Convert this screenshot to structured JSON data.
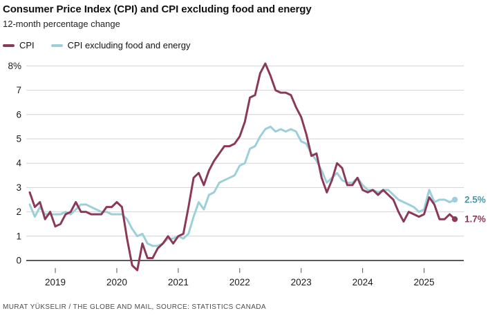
{
  "page": {
    "title": "Consumer Price Index (CPI) and CPI excluding food and energy",
    "subtitle": "12-month percentage change",
    "source": "MURAT YÜKSELIR / THE GLOBE AND MAIL, SOURCE: STATISTICS CANADA"
  },
  "legend": {
    "items": [
      {
        "label": "CPI",
        "color": "#8c3858"
      },
      {
        "label": "CPI excluding food and energy",
        "color": "#9bd0d9"
      }
    ]
  },
  "colors": {
    "grid": "#d2d2d2",
    "zero_axis": "#222222",
    "tick": "#555555",
    "axis_text": "#1a1a1a"
  },
  "chart_data": {
    "type": "line",
    "title": "Consumer Price Index (CPI) and CPI excluding food and energy",
    "subtitle": "12-month percentage change",
    "xlabel": "",
    "ylabel": "12-month percentage change",
    "x_frequency": "monthly",
    "x": [
      "2018-08",
      "2018-09",
      "2018-10",
      "2018-11",
      "2018-12",
      "2019-01",
      "2019-02",
      "2019-03",
      "2019-04",
      "2019-05",
      "2019-06",
      "2019-07",
      "2019-08",
      "2019-09",
      "2019-10",
      "2019-11",
      "2019-12",
      "2020-01",
      "2020-02",
      "2020-03",
      "2020-04",
      "2020-05",
      "2020-06",
      "2020-07",
      "2020-08",
      "2020-09",
      "2020-10",
      "2020-11",
      "2020-12",
      "2021-01",
      "2021-02",
      "2021-03",
      "2021-04",
      "2021-05",
      "2021-06",
      "2021-07",
      "2021-08",
      "2021-09",
      "2021-10",
      "2021-11",
      "2021-12",
      "2022-01",
      "2022-02",
      "2022-03",
      "2022-04",
      "2022-05",
      "2022-06",
      "2022-07",
      "2022-08",
      "2022-09",
      "2022-10",
      "2022-11",
      "2022-12",
      "2023-01",
      "2023-02",
      "2023-03",
      "2023-04",
      "2023-05",
      "2023-06",
      "2023-07",
      "2023-08",
      "2023-09",
      "2023-10",
      "2023-11",
      "2023-12",
      "2024-01",
      "2024-02",
      "2024-03",
      "2024-04",
      "2024-05",
      "2024-06",
      "2024-07",
      "2024-08",
      "2024-09",
      "2024-10",
      "2024-11",
      "2024-12",
      "2025-01",
      "2025-02",
      "2025-03",
      "2025-04",
      "2025-05",
      "2025-06",
      "2025-07"
    ],
    "x_tick_labels": [
      "2019",
      "2020",
      "2021",
      "2022",
      "2023",
      "2024",
      "2025"
    ],
    "y_tick_labels": [
      "8%",
      "7",
      "6",
      "5",
      "4",
      "3",
      "2",
      "1",
      "0"
    ],
    "ylim": [
      -0.5,
      8.3
    ],
    "grid": true,
    "legend_position": "top-left",
    "series": [
      {
        "name": "CPI",
        "color": "#8c3858",
        "end_label": "1.7%",
        "end_label_color": "#8c3858",
        "end_value": 1.7,
        "values": [
          2.8,
          2.2,
          2.4,
          1.7,
          2.0,
          1.4,
          1.5,
          1.9,
          2.0,
          2.4,
          2.0,
          2.0,
          1.9,
          1.9,
          1.9,
          2.2,
          2.2,
          2.4,
          2.2,
          0.9,
          -0.2,
          -0.4,
          0.7,
          0.1,
          0.1,
          0.5,
          0.7,
          1.0,
          0.7,
          1.0,
          1.1,
          2.2,
          3.4,
          3.6,
          3.1,
          3.7,
          4.1,
          4.4,
          4.7,
          4.7,
          4.8,
          5.1,
          5.7,
          6.7,
          6.8,
          7.7,
          8.1,
          7.6,
          7.0,
          6.9,
          6.9,
          6.8,
          6.3,
          5.9,
          5.2,
          4.3,
          4.4,
          3.4,
          2.8,
          3.3,
          4.0,
          3.8,
          3.1,
          3.1,
          3.4,
          2.9,
          2.8,
          2.9,
          2.7,
          2.9,
          2.7,
          2.5,
          2.0,
          1.6,
          2.0,
          1.9,
          1.8,
          1.9,
          2.6,
          2.3,
          1.7,
          1.7,
          1.9,
          1.7
        ]
      },
      {
        "name": "CPI excluding food and energy",
        "color": "#9bd0d9",
        "end_label": "2.5%",
        "end_label_color": "#4a97a8",
        "end_value": 2.5,
        "values": [
          2.3,
          1.8,
          2.2,
          1.9,
          1.9,
          1.9,
          1.9,
          2.0,
          1.9,
          2.1,
          2.3,
          2.3,
          2.2,
          2.1,
          2.0,
          2.0,
          1.9,
          1.9,
          1.9,
          1.7,
          1.3,
          1.0,
          1.1,
          0.7,
          0.6,
          0.6,
          0.7,
          0.9,
          0.9,
          1.0,
          0.9,
          1.1,
          1.8,
          2.4,
          2.1,
          2.7,
          2.8,
          3.2,
          3.3,
          3.4,
          3.5,
          3.9,
          4.0,
          4.6,
          4.7,
          5.1,
          5.4,
          5.5,
          5.3,
          5.4,
          5.3,
          5.4,
          5.3,
          4.9,
          4.8,
          4.4,
          4.1,
          3.7,
          3.2,
          3.4,
          3.6,
          3.3,
          3.2,
          3.2,
          3.4,
          3.1,
          2.9,
          2.9,
          2.8,
          2.9,
          2.9,
          2.7,
          2.5,
          2.4,
          2.3,
          2.2,
          2.0,
          2.1,
          2.9,
          2.4,
          2.5,
          2.5,
          2.4,
          2.5
        ]
      }
    ]
  }
}
